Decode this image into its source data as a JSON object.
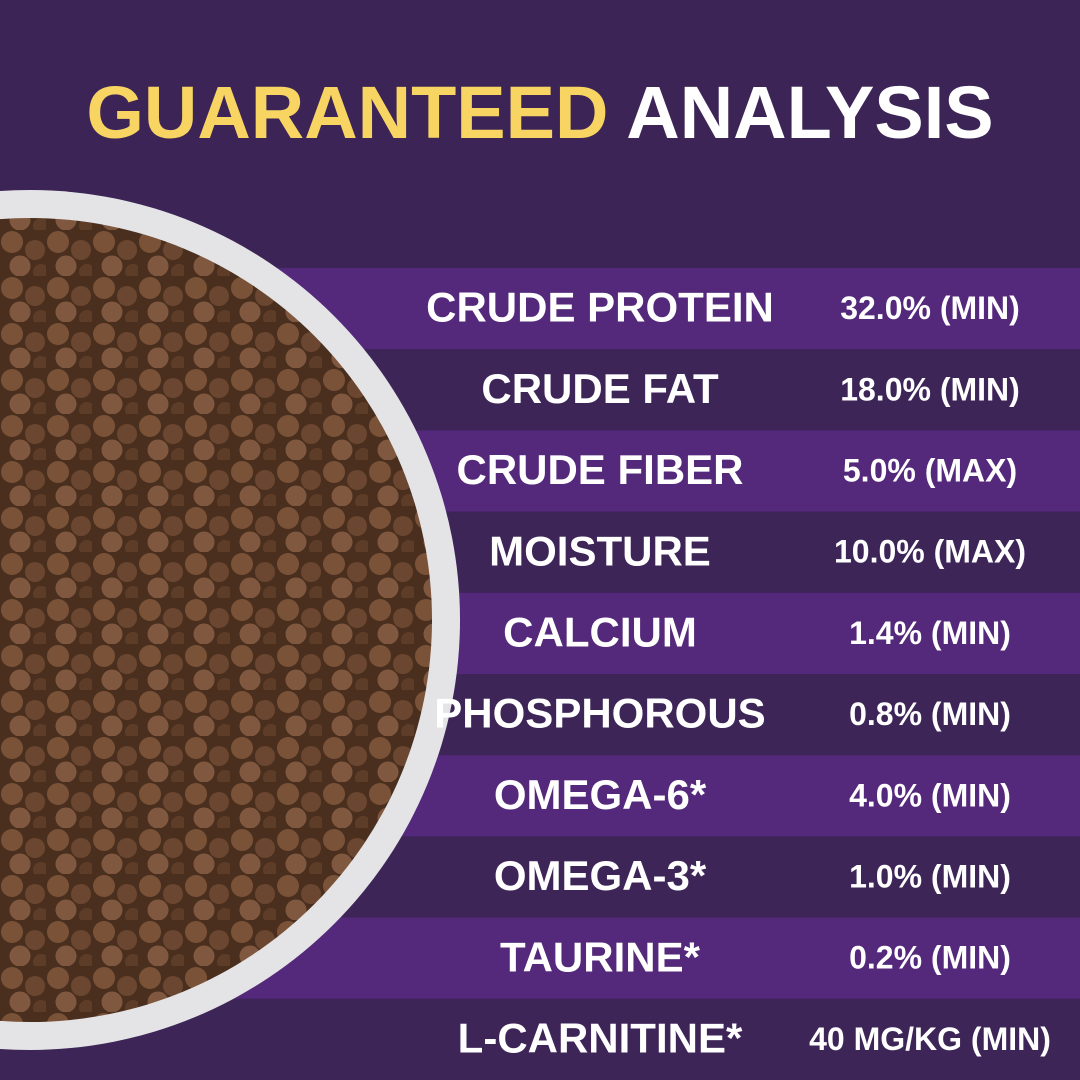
{
  "header": {
    "title_highlight": "GUARANTEED",
    "title_rest": "ANALYSIS"
  },
  "table": {
    "rows": [
      [
        "CRUDE PROTEIN",
        "32.0% (MIN)"
      ],
      [
        "CRUDE FAT",
        "18.0% (MIN)"
      ],
      [
        "CRUDE FIBER",
        "5.0% (MAX)"
      ],
      [
        "MOISTURE",
        "10.0% (MAX)"
      ],
      [
        "CALCIUM",
        "1.4% (MIN)"
      ],
      [
        "PHOSPHOROUS",
        "0.8% (MIN)"
      ],
      [
        "OMEGA-6*",
        "4.0% (MIN)"
      ],
      [
        "OMEGA-3*",
        "1.0% (MIN)"
      ],
      [
        "TAURINE*",
        "0.2% (MIN)"
      ],
      [
        "L-CARNITINE*",
        "40 MG/KG (MIN)"
      ]
    ]
  }
}
